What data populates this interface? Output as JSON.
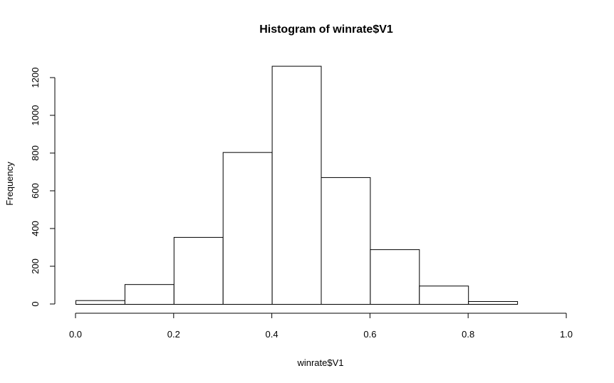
{
  "chart_data": {
    "type": "bar",
    "title": "Histogram of winrate$V1",
    "xlabel": "winrate$V1",
    "ylabel": "Frequency",
    "bin_edges": [
      0.0,
      0.1,
      0.2,
      0.3,
      0.4,
      0.5,
      0.6,
      0.7,
      0.8,
      0.9,
      1.0
    ],
    "values": [
      20,
      105,
      355,
      805,
      1262,
      672,
      290,
      97,
      15,
      0
    ],
    "xlim": [
      0.0,
      1.0
    ],
    "ylim": [
      0,
      1262
    ],
    "xticks": [
      0.0,
      0.2,
      0.4,
      0.6,
      0.8,
      1.0
    ],
    "xtick_labels": [
      "0.0",
      "0.2",
      "0.4",
      "0.6",
      "0.8",
      "1.0"
    ],
    "yticks": [
      0,
      200,
      400,
      600,
      800,
      1000,
      1200
    ],
    "ytick_labels": [
      "0",
      "200",
      "400",
      "600",
      "800",
      "1000",
      "1200"
    ],
    "grid": false
  }
}
